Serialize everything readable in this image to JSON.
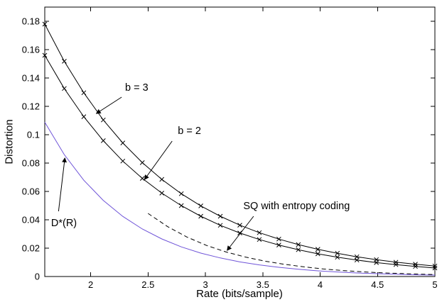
{
  "chart_data": {
    "type": "line",
    "title": "",
    "xlabel": "Rate (bits/sample)",
    "ylabel": "Distortion",
    "xlim": [
      1.6,
      5
    ],
    "ylim": [
      0,
      0.19
    ],
    "x_ticks": [
      2,
      2.5,
      3,
      3.5,
      4,
      4.5,
      5
    ],
    "y_ticks": [
      0,
      0.02,
      0.04,
      0.06,
      0.08,
      0.1,
      0.12,
      0.14,
      0.16,
      0.18
    ],
    "grid": false,
    "legend": "none (labels via annotations with arrows)",
    "series": [
      {
        "name": "D*(R)",
        "color": "#6f54d8",
        "marker": "none",
        "dash": null,
        "x": [
          1.6,
          1.77,
          1.94,
          2.11,
          2.28,
          2.45,
          2.62,
          2.79,
          2.96,
          3.13,
          3.3,
          3.47,
          3.64,
          3.81,
          3.98,
          4.15,
          4.32,
          4.49,
          4.66,
          4.83,
          5.0
        ],
        "y": [
          0.1088,
          0.086,
          0.0679,
          0.0537,
          0.0424,
          0.0335,
          0.0265,
          0.0209,
          0.0165,
          0.0131,
          0.0103,
          0.0082,
          0.0065,
          0.0051,
          0.004,
          0.0032,
          0.0025,
          0.002,
          0.0016,
          0.0012,
          0.001
        ]
      },
      {
        "name": "SQ with entropy coding",
        "color": "#000000",
        "marker": "none",
        "dash": "6 4",
        "x": [
          2.5,
          2.67,
          2.84,
          3.01,
          3.18,
          3.35,
          3.52,
          3.69,
          3.86,
          4.03,
          4.2,
          4.37,
          4.54,
          4.71,
          4.88,
          5.0
        ],
        "y": [
          0.0445,
          0.0352,
          0.0278,
          0.0219,
          0.0173,
          0.0137,
          0.0108,
          0.0086,
          0.0068,
          0.0053,
          0.0042,
          0.0033,
          0.0026,
          0.0021,
          0.0016,
          0.0014
        ]
      },
      {
        "name": "b = 2",
        "color": "#000000",
        "marker": "x",
        "dash": null,
        "x": [
          1.6,
          1.77,
          1.94,
          2.11,
          2.28,
          2.45,
          2.62,
          2.79,
          2.96,
          3.13,
          3.3,
          3.47,
          3.64,
          3.81,
          3.98,
          4.15,
          4.32,
          4.49,
          4.66,
          4.83,
          5.0
        ],
        "y": [
          0.156,
          0.1326,
          0.1127,
          0.0958,
          0.0814,
          0.0692,
          0.0588,
          0.05,
          0.0425,
          0.0361,
          0.0307,
          0.0261,
          0.0222,
          0.0189,
          0.016,
          0.0136,
          0.0116,
          0.0098,
          0.0084,
          0.0071,
          0.006
        ]
      },
      {
        "name": "b = 3",
        "color": "#000000",
        "marker": "x",
        "dash": null,
        "x": [
          1.6,
          1.77,
          1.94,
          2.11,
          2.28,
          2.45,
          2.62,
          2.79,
          2.96,
          3.13,
          3.3,
          3.47,
          3.64,
          3.81,
          3.98,
          4.15,
          4.32,
          4.49,
          4.66,
          4.83,
          5.0
        ],
        "y": [
          0.178,
          0.1518,
          0.1296,
          0.1104,
          0.0942,
          0.0803,
          0.0685,
          0.0584,
          0.0498,
          0.0425,
          0.0362,
          0.0309,
          0.0264,
          0.0225,
          0.0192,
          0.0164,
          0.0139,
          0.0119,
          0.0101,
          0.0087,
          0.0074
        ]
      }
    ],
    "annotations": [
      {
        "text": "b = 3",
        "text_x": 2.3,
        "text_y": 0.131,
        "from_x": 2.27,
        "from_y": 0.1265,
        "to_x": 2.05,
        "to_y": 0.115
      },
      {
        "text": "b = 2",
        "text_x": 2.76,
        "text_y": 0.1005,
        "from_x": 2.71,
        "from_y": 0.0955,
        "to_x": 2.47,
        "to_y": 0.0685
      },
      {
        "text": "SQ with entropy coding",
        "text_x": 3.33,
        "text_y": 0.0475,
        "from_x": 3.42,
        "from_y": 0.0425,
        "to_x": 3.19,
        "to_y": 0.0185
      },
      {
        "text": "D*(R)",
        "text_x": 1.655,
        "text_y": 0.0355,
        "from_x": 1.72,
        "from_y": 0.046,
        "to_x": 1.775,
        "to_y": 0.0835
      }
    ]
  }
}
